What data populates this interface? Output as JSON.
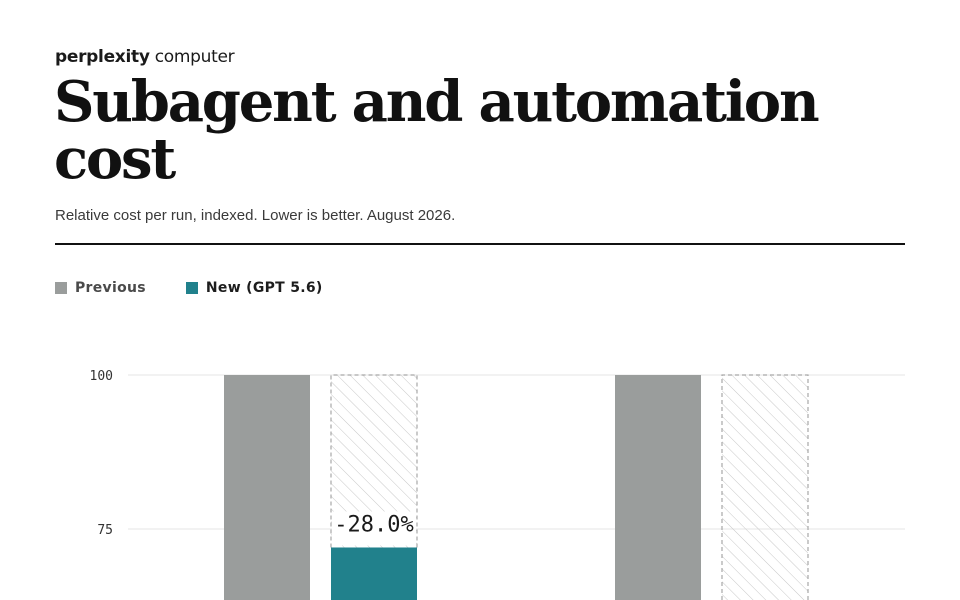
{
  "brand": {
    "part1": "perplexity",
    "part2": " computer"
  },
  "title": "Subagent and automation cost",
  "subtitle": "Relative cost per run, indexed. Lower is better. August 2026.",
  "colors": {
    "previous": "#9a9d9c",
    "new": "#21818c",
    "grid": "#e6e6e6",
    "hatch": "#c8c8c8"
  },
  "chart_data": {
    "type": "bar",
    "title": "Subagent and automation cost",
    "subtitle": "Relative cost per run, indexed. Lower is better. August 2026.",
    "ylabel": "",
    "xlabel": "",
    "yticks": [
      100,
      75
    ],
    "ylim": [
      60,
      100
    ],
    "grid": true,
    "legend_position": "top-left",
    "categories": [
      "",
      ""
    ],
    "series": [
      {
        "name": "Previous",
        "values": [
          100,
          100
        ]
      },
      {
        "name": "New (GPT 5.6)",
        "values": [
          72,
          null
        ]
      }
    ],
    "annotations": [
      {
        "category_index": 0,
        "series": "New (GPT 5.6)",
        "text": "-28.0%"
      }
    ]
  }
}
